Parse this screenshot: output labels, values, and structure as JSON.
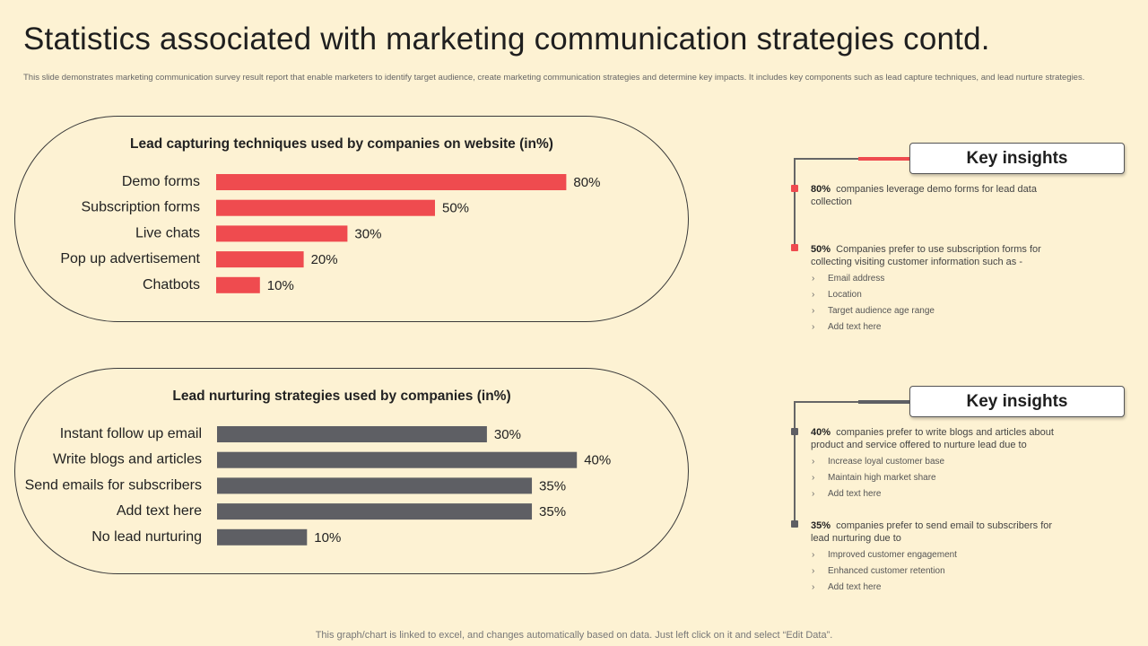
{
  "title": "Statistics associated with marketing communication strategies contd.",
  "subtitle": "This slide demonstrates marketing communication survey result report that enable marketers to identify target audience, create marketing communication strategies and determine key impacts. It includes key components such as lead capture techniques, and lead nurture strategies.",
  "chart_data": [
    {
      "type": "bar",
      "orientation": "horizontal",
      "title": "Lead capturing techniques used by companies on website (in%)",
      "categories": [
        "Demo forms",
        "Subscription forms",
        "Live chats",
        "Pop up advertisement",
        "Chatbots"
      ],
      "values": [
        80,
        50,
        30,
        20,
        10
      ],
      "value_labels": [
        "80%",
        "50%",
        "30%",
        "20%",
        "10%"
      ],
      "xlim": [
        0,
        100
      ],
      "color": "#ef4b4f",
      "grid": false
    },
    {
      "type": "bar",
      "orientation": "horizontal",
      "title": "Lead nurturing strategies used by companies (in%)",
      "categories": [
        "Instant follow up email",
        "Write blogs and articles",
        "Send emails for subscribers",
        "Add text here",
        "No lead nurturing"
      ],
      "values": [
        30,
        40,
        35,
        35,
        10
      ],
      "value_labels": [
        "30%",
        "40%",
        "35%",
        "35%",
        "10%"
      ],
      "xlim": [
        0,
        50
      ],
      "color": "#5e5f64",
      "grid": false
    }
  ],
  "insights": [
    {
      "heading": "Key insights",
      "accent": "#ef4b4f",
      "points": [
        {
          "pct": "80%",
          "text": "companies leverage demo forms for lead data collection",
          "items": []
        },
        {
          "pct": "50%",
          "text": "Companies prefer to use subscription forms for collecting visiting customer information such as -",
          "items": [
            "Email address",
            "Location",
            "Target audience age range",
            "Add text here"
          ]
        }
      ]
    },
    {
      "heading": "Key insights",
      "accent": "#5e5f64",
      "points": [
        {
          "pct": "40%",
          "text": "companies prefer to write blogs and articles about product and service offered to nurture lead due to",
          "items": [
            "Increase loyal customer base",
            "Maintain high market share",
            "Add text here"
          ]
        },
        {
          "pct": "35%",
          "text": "companies prefer to send email to subscribers for lead nurturing due to",
          "items": [
            "Improved customer engagement",
            "Enhanced customer retention",
            "Add text here"
          ]
        }
      ]
    }
  ],
  "footer": "This graph/chart is linked to excel,  and changes automatically based on data. Just left click on it and select “Edit Data”."
}
